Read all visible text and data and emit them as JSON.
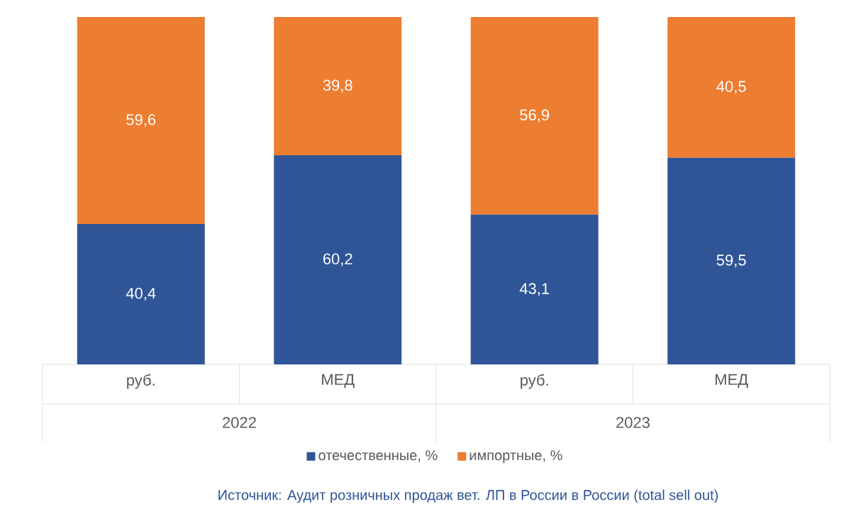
{
  "chart_data": {
    "type": "bar",
    "stacked": true,
    "legend": "bottom",
    "categories": [
      "руб.",
      "МЕД",
      "руб.",
      "МЕД"
    ],
    "series": [
      {
        "name": "отечественные, %",
        "color": "#2f5597",
        "values": [
          40.4,
          60.2,
          43.1,
          59.5
        ],
        "value_labels": [
          "40,4",
          "60,2",
          "43,1",
          "59,5"
        ]
      },
      {
        "name": "импортные, %",
        "color": "#ed7d31",
        "values": [
          59.6,
          39.8,
          56.9,
          40.5
        ],
        "value_labels": [
          "59,6",
          "39,8",
          "56,9",
          "40,5"
        ]
      }
    ],
    "annotations": [
      "2022",
      "2023",
      "Источник: Аудит розничных продаж вет. ЛП в России в России (total sell out)"
    ]
  }
}
